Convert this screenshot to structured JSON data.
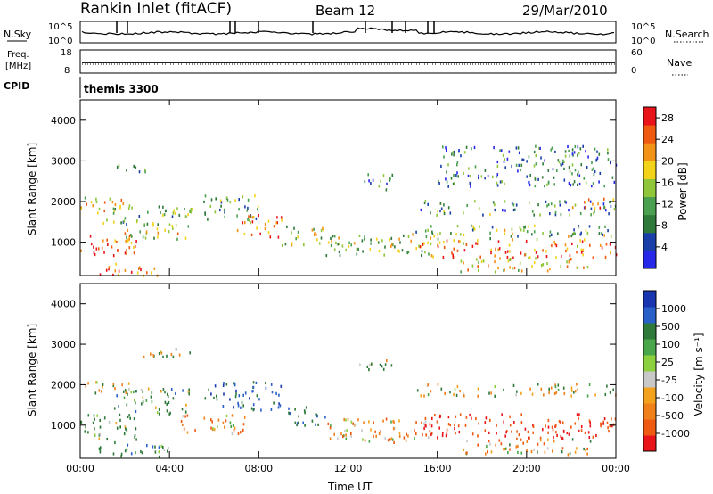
{
  "header": {
    "station": "Rankin Inlet (fitACF)",
    "beam": "Beam 12",
    "date": "29/Mar/2010"
  },
  "noise_panel": {
    "left_label": "N.Sky",
    "right_label": "N.Search",
    "ticks": [
      "10^5",
      "10^0"
    ]
  },
  "freq_panel": {
    "left_label_1": "Freq.",
    "left_label_2": "[MHz]",
    "right_label": "Nave",
    "left_ticks": [
      "18",
      "8"
    ],
    "right_ticks": [
      "60",
      "0"
    ]
  },
  "cpid_panel": {
    "label": "CPID",
    "value": "themis 3300"
  },
  "colors": {
    "power": [
      "#2828e8",
      "#1a3fa8",
      "#2f7a3a",
      "#4aa050",
      "#8fc63a",
      "#f3d21a",
      "#f29318",
      "#ee5b10",
      "#e8141a"
    ],
    "velocity": [
      "#1a35b0",
      "#2860c8",
      "#2f7a3a",
      "#4aa64a",
      "#8cd040",
      "#c8c8c8",
      "#f2a21c",
      "#f0801a",
      "#ee5a12",
      "#e8141a"
    ]
  },
  "chart_data": [
    {
      "type": "heatmap",
      "title": "",
      "xlabel": "",
      "ylabel": "Slant Range [km]",
      "xlim": [
        "00:00",
        "00:00"
      ],
      "ylim": [
        180,
        4500
      ],
      "x_ticks": [
        "00:00",
        "04:00",
        "08:00",
        "12:00",
        "16:00",
        "20:00",
        "00:00"
      ],
      "y_ticks": [
        "1000",
        "2000",
        "3000",
        "4000"
      ],
      "colorbar": {
        "label": "Power [dB]",
        "ticks": [
          "4",
          "8",
          "12",
          "16",
          "20",
          "24",
          "28"
        ],
        "range": [
          0,
          30
        ]
      },
      "bands": [
        {
          "t0": 0.0,
          "t1": 2.5,
          "r0": 650,
          "r1": 1250,
          "value": 26
        },
        {
          "t0": 0.0,
          "t1": 2.2,
          "r0": 1750,
          "r1": 2150,
          "value": 18
        },
        {
          "t0": 0.5,
          "t1": 3.5,
          "r0": 200,
          "r1": 500,
          "value": 24
        },
        {
          "t0": 1.0,
          "t1": 5.0,
          "r0": 1450,
          "r1": 1950,
          "value": 12
        },
        {
          "t0": 2.0,
          "t1": 5.0,
          "r0": 1100,
          "r1": 1500,
          "value": 17
        },
        {
          "t0": 5.5,
          "t1": 8.0,
          "r0": 1500,
          "r1": 2200,
          "value": 12
        },
        {
          "t0": 7.0,
          "t1": 9.0,
          "r0": 1150,
          "r1": 1700,
          "value": 23
        },
        {
          "t0": 1.5,
          "t1": 3.0,
          "r0": 2750,
          "r1": 3000,
          "value": 9
        },
        {
          "t0": 9.0,
          "t1": 11.0,
          "r0": 950,
          "r1": 1450,
          "value": 14
        },
        {
          "t0": 11.0,
          "t1": 16.0,
          "r0": 700,
          "r1": 1250,
          "value": 15
        },
        {
          "t0": 12.5,
          "t1": 14.0,
          "r0": 2300,
          "r1": 2700,
          "value": 8
        },
        {
          "t0": 15.0,
          "t1": 24.0,
          "r0": 1100,
          "r1": 1450,
          "value": 13
        },
        {
          "t0": 15.0,
          "t1": 24.0,
          "r0": 650,
          "r1": 1100,
          "value": 24
        },
        {
          "t0": 17.0,
          "t1": 23.0,
          "r0": 300,
          "r1": 650,
          "value": 18
        },
        {
          "t0": 15.0,
          "t1": 24.0,
          "r0": 1700,
          "r1": 2050,
          "value": 10
        },
        {
          "t0": 22.0,
          "t1": 24.0,
          "r0": 1800,
          "r1": 2100,
          "value": 22
        },
        {
          "t0": 16.0,
          "t1": 24.0,
          "r0": 2400,
          "r1": 3400,
          "value": 8
        }
      ]
    },
    {
      "type": "heatmap",
      "title": "",
      "xlabel": "Time UT",
      "ylabel": "Slant Range [km]",
      "xlim": [
        "00:00",
        "00:00"
      ],
      "ylim": [
        180,
        4500
      ],
      "x_ticks": [
        "00:00",
        "04:00",
        "08:00",
        "12:00",
        "16:00",
        "20:00",
        "00:00"
      ],
      "y_ticks": [
        "1000",
        "2000",
        "3000",
        "4000"
      ],
      "colorbar": {
        "label": "Velocity [m s⁻¹]",
        "ticks": [
          "1000",
          "500",
          "100",
          "25",
          "-25",
          "-100",
          "-500",
          "-1000"
        ]
      },
      "bands": [
        {
          "t0": 0.0,
          "t1": 2.5,
          "r0": 600,
          "r1": 1300,
          "value": 200
        },
        {
          "t0": 0.0,
          "t1": 2.5,
          "r0": 1800,
          "r1": 2100,
          "value": 0
        },
        {
          "t0": 0.5,
          "t1": 4.0,
          "r0": 200,
          "r1": 550,
          "value": 300
        },
        {
          "t0": 1.5,
          "t1": 5.0,
          "r0": 1300,
          "r1": 1950,
          "value": 250
        },
        {
          "t0": 5.5,
          "t1": 9.0,
          "r0": 1400,
          "r1": 2100,
          "value": 600
        },
        {
          "t0": 9.0,
          "t1": 11.0,
          "r0": 1000,
          "r1": 1500,
          "value": 400
        },
        {
          "t0": 4.5,
          "t1": 7.5,
          "r0": 800,
          "r1": 1300,
          "value": -200
        },
        {
          "t0": 11.0,
          "t1": 16.0,
          "r0": 600,
          "r1": 1200,
          "value": -200
        },
        {
          "t0": 15.0,
          "t1": 24.0,
          "r0": 700,
          "r1": 1300,
          "value": -600
        },
        {
          "t0": 17.0,
          "t1": 23.0,
          "r0": 300,
          "r1": 700,
          "value": -150
        },
        {
          "t0": 15.0,
          "t1": 24.0,
          "r0": 1750,
          "r1": 2050,
          "value": 0
        },
        {
          "t0": 12.5,
          "t1": 14.0,
          "r0": 2300,
          "r1": 2650,
          "value": 150
        },
        {
          "t0": 2.5,
          "t1": 5.0,
          "r0": 2700,
          "r1": 2950,
          "value": 0
        }
      ]
    }
  ]
}
